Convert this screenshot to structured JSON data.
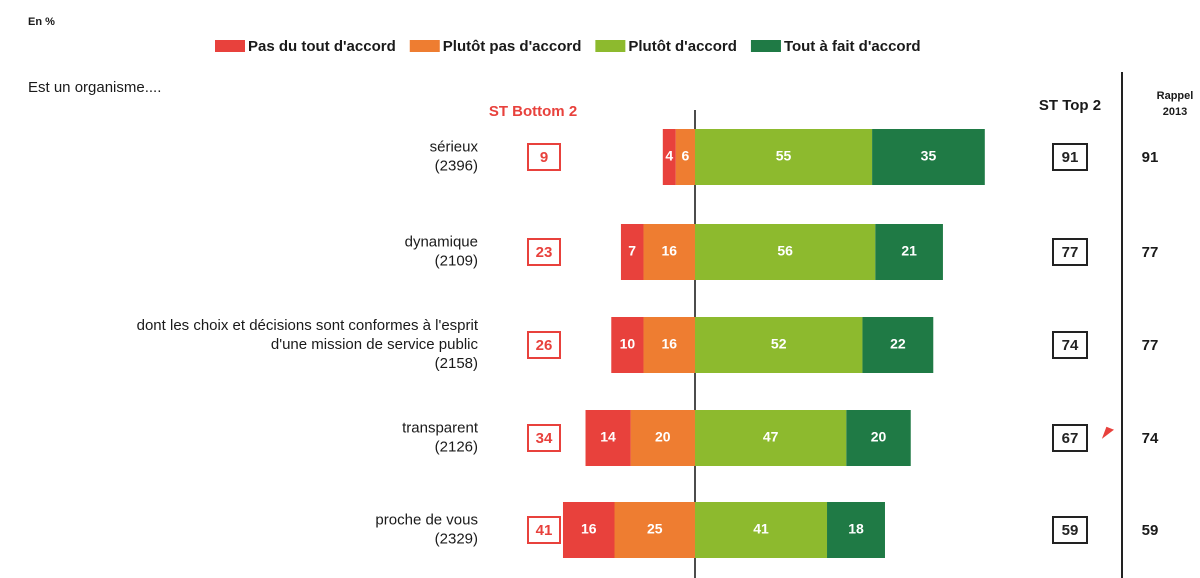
{
  "chart_data": {
    "type": "diverging_bar",
    "note_unit": "En %",
    "subtitle": "Est un organisme....",
    "categories": [
      [
        "sérieux",
        "(2396)"
      ],
      [
        "dynamique",
        "(2109)"
      ],
      [
        "dont les choix et décisions sont conformes à l'esprit",
        "d'une mission de service public",
        "(2158)"
      ],
      [
        "transparent",
        "(2126)"
      ],
      [
        "proche de vous",
        "(2329)"
      ]
    ],
    "series": [
      {
        "name": "Pas du tout d'accord",
        "color": "#e8413c",
        "side": "negative",
        "values": [
          4,
          7,
          10,
          14,
          16
        ]
      },
      {
        "name": "Plutôt pas d'accord",
        "color": "#ee7d31",
        "side": "negative",
        "values": [
          6,
          16,
          16,
          20,
          25
        ]
      },
      {
        "name": "Plutôt d'accord",
        "color": "#8dba2e",
        "side": "positive",
        "values": [
          55,
          56,
          52,
          47,
          41
        ]
      },
      {
        "name": "Tout à fait d'accord",
        "color": "#1f7a45",
        "side": "positive",
        "values": [
          35,
          21,
          22,
          20,
          18
        ]
      }
    ],
    "bottom2": {
      "title": "ST Bottom 2",
      "color": "#e8413c",
      "values": [
        9,
        23,
        26,
        34,
        41
      ]
    },
    "top2": {
      "title": "ST Top 2",
      "color": "#222222",
      "values": [
        91,
        77,
        74,
        67,
        59
      ]
    },
    "recall": {
      "title": [
        "Rappel",
        "2013"
      ],
      "values": [
        91,
        77,
        77,
        74,
        59
      ]
    }
  }
}
